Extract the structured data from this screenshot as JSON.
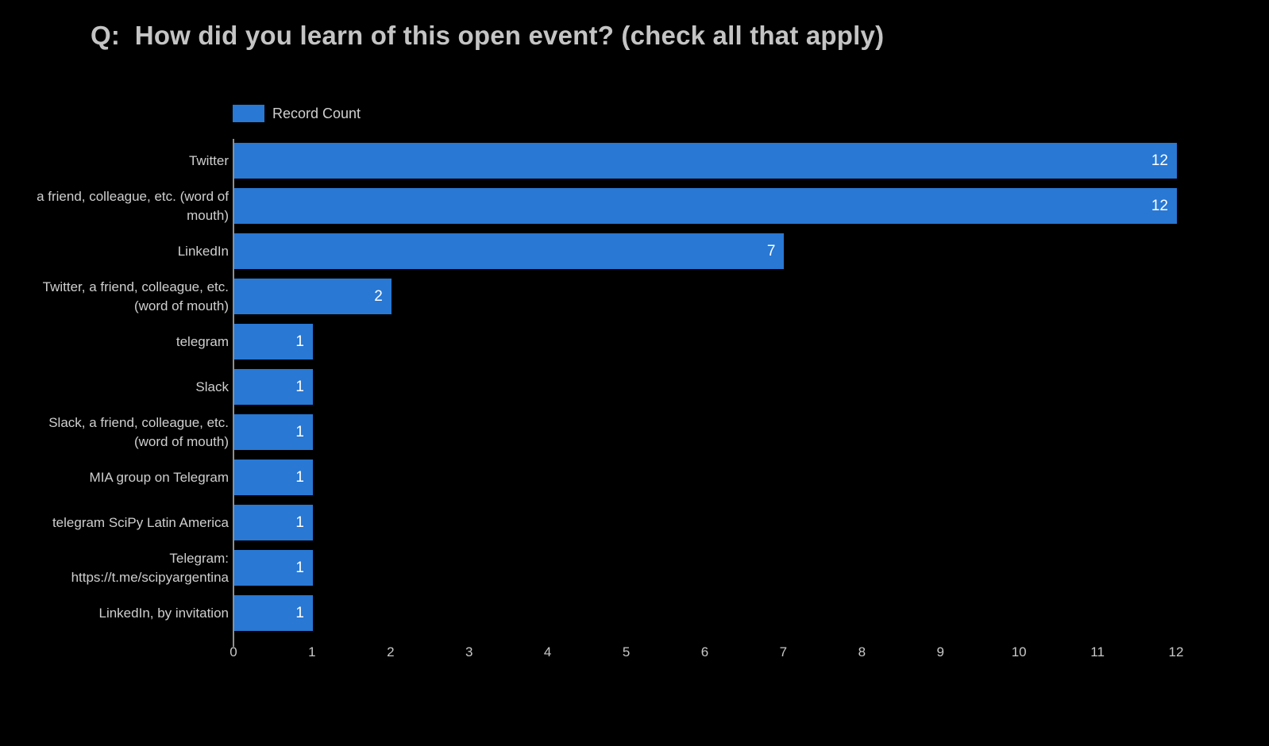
{
  "title": "Q:  How did you learn of this open event? (check all that apply)",
  "legend": {
    "label": "Record Count",
    "swatch_color": "#2878d4"
  },
  "chart_data": {
    "type": "bar",
    "orientation": "horizontal",
    "title": "Q:  How did you learn of this open event? (check all that apply)",
    "series_name": "Record Count",
    "categories": [
      "Twitter",
      "a friend, colleague, etc. (word of mouth)",
      "LinkedIn",
      "Twitter, a friend, colleague, etc. (word of mouth)",
      "telegram",
      "Slack",
      "Slack, a friend, colleague, etc. (word of mouth)",
      "MIA group on Telegram",
      "telegram SciPy Latin America",
      "Telegram: https://t.me/scipyargentina",
      "LinkedIn, by invitation"
    ],
    "values": [
      12,
      12,
      7,
      2,
      1,
      1,
      1,
      1,
      1,
      1,
      1
    ],
    "xlim": [
      0,
      12
    ],
    "x_ticks": [
      0,
      1,
      2,
      3,
      4,
      5,
      6,
      7,
      8,
      9,
      10,
      11,
      12
    ],
    "xlabel": "",
    "ylabel": "",
    "grid": false,
    "legend_position": "top-left",
    "bar_color": "#2878d4",
    "value_label_color": "#ffffff",
    "background": "#000000"
  }
}
